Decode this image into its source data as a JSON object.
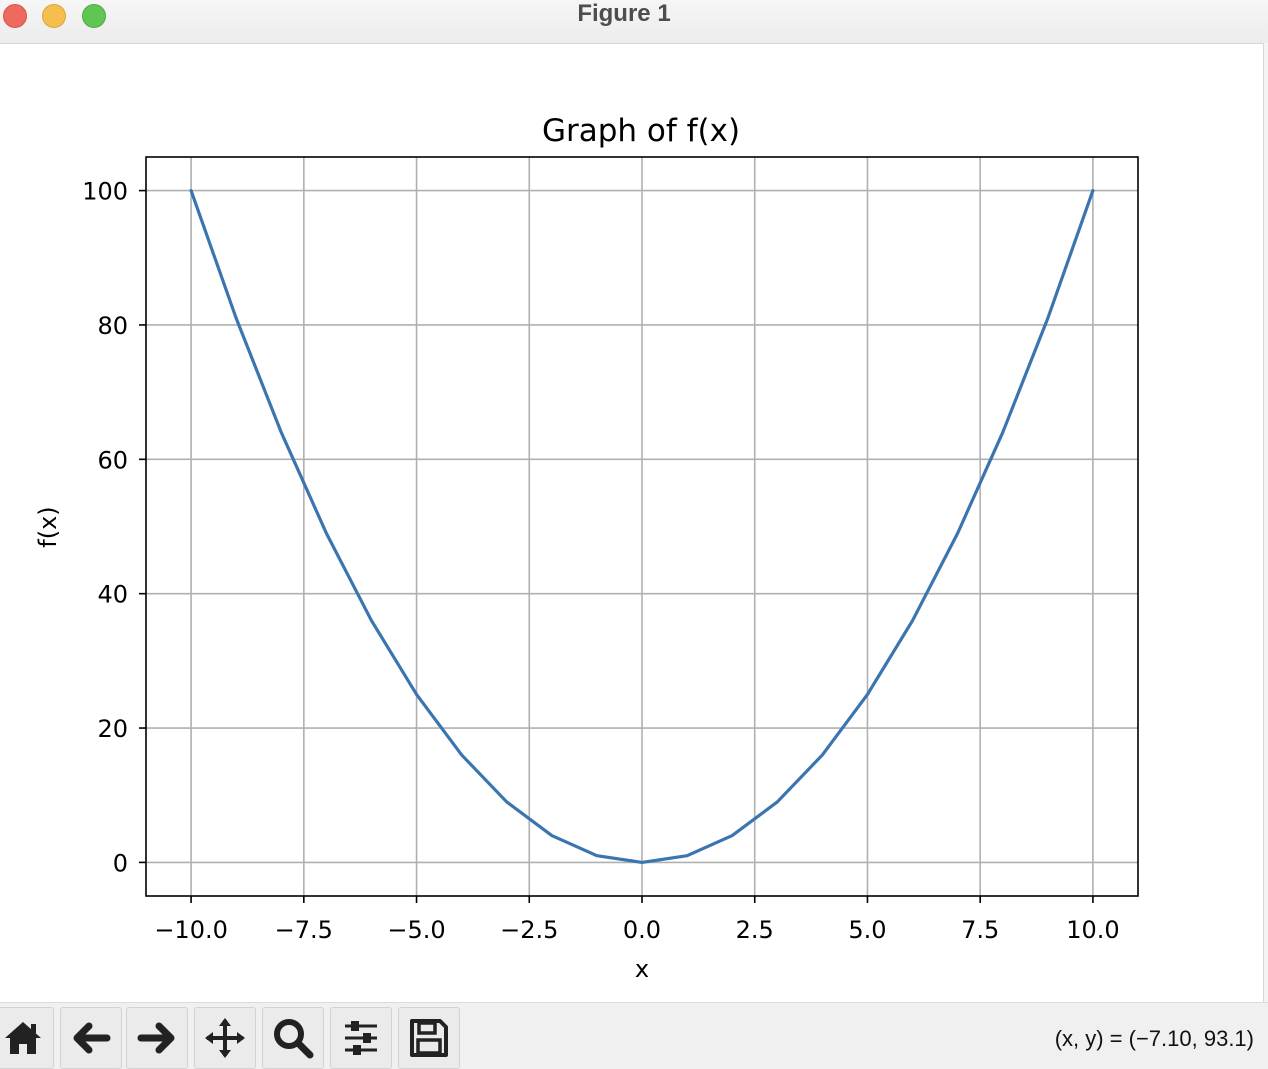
{
  "window": {
    "title": "Figure 1"
  },
  "chart_data": {
    "type": "line",
    "title": "Graph of f(x)",
    "xlabel": "x",
    "ylabel": "f(x)",
    "xlim": [
      -11,
      11
    ],
    "ylim": [
      -5,
      105
    ],
    "xticks": [
      -10,
      -7.5,
      -5,
      -2.5,
      0,
      2.5,
      5,
      7.5,
      10
    ],
    "xtick_labels": [
      "−10.0",
      "−7.5",
      "−5.0",
      "−2.5",
      "0.0",
      "2.5",
      "5.0",
      "7.5",
      "10.0"
    ],
    "yticks": [
      0,
      20,
      40,
      60,
      80,
      100
    ],
    "ytick_labels": [
      "0",
      "20",
      "40",
      "60",
      "80",
      "100"
    ],
    "grid": true,
    "series": [
      {
        "color": "#3a75af",
        "x": [
          -10,
          -9,
          -8,
          -7,
          -6,
          -5,
          -4,
          -3,
          -2,
          -1,
          0,
          1,
          2,
          3,
          4,
          5,
          6,
          7,
          8,
          9,
          10
        ],
        "y": [
          100,
          81,
          64,
          49,
          36,
          25,
          16,
          9,
          4,
          1,
          0,
          1,
          4,
          9,
          16,
          25,
          36,
          49,
          64,
          81,
          100
        ]
      }
    ]
  },
  "toolbar": {
    "buttons": [
      {
        "name": "home-icon"
      },
      {
        "name": "back-arrow-icon"
      },
      {
        "name": "forward-arrow-icon"
      },
      {
        "name": "pan-move-icon"
      },
      {
        "name": "zoom-magnifier-icon"
      },
      {
        "name": "configure-subplots-icon"
      },
      {
        "name": "save-floppy-icon"
      }
    ],
    "coordinates": "(x, y) = (−7.10, 93.1)"
  }
}
